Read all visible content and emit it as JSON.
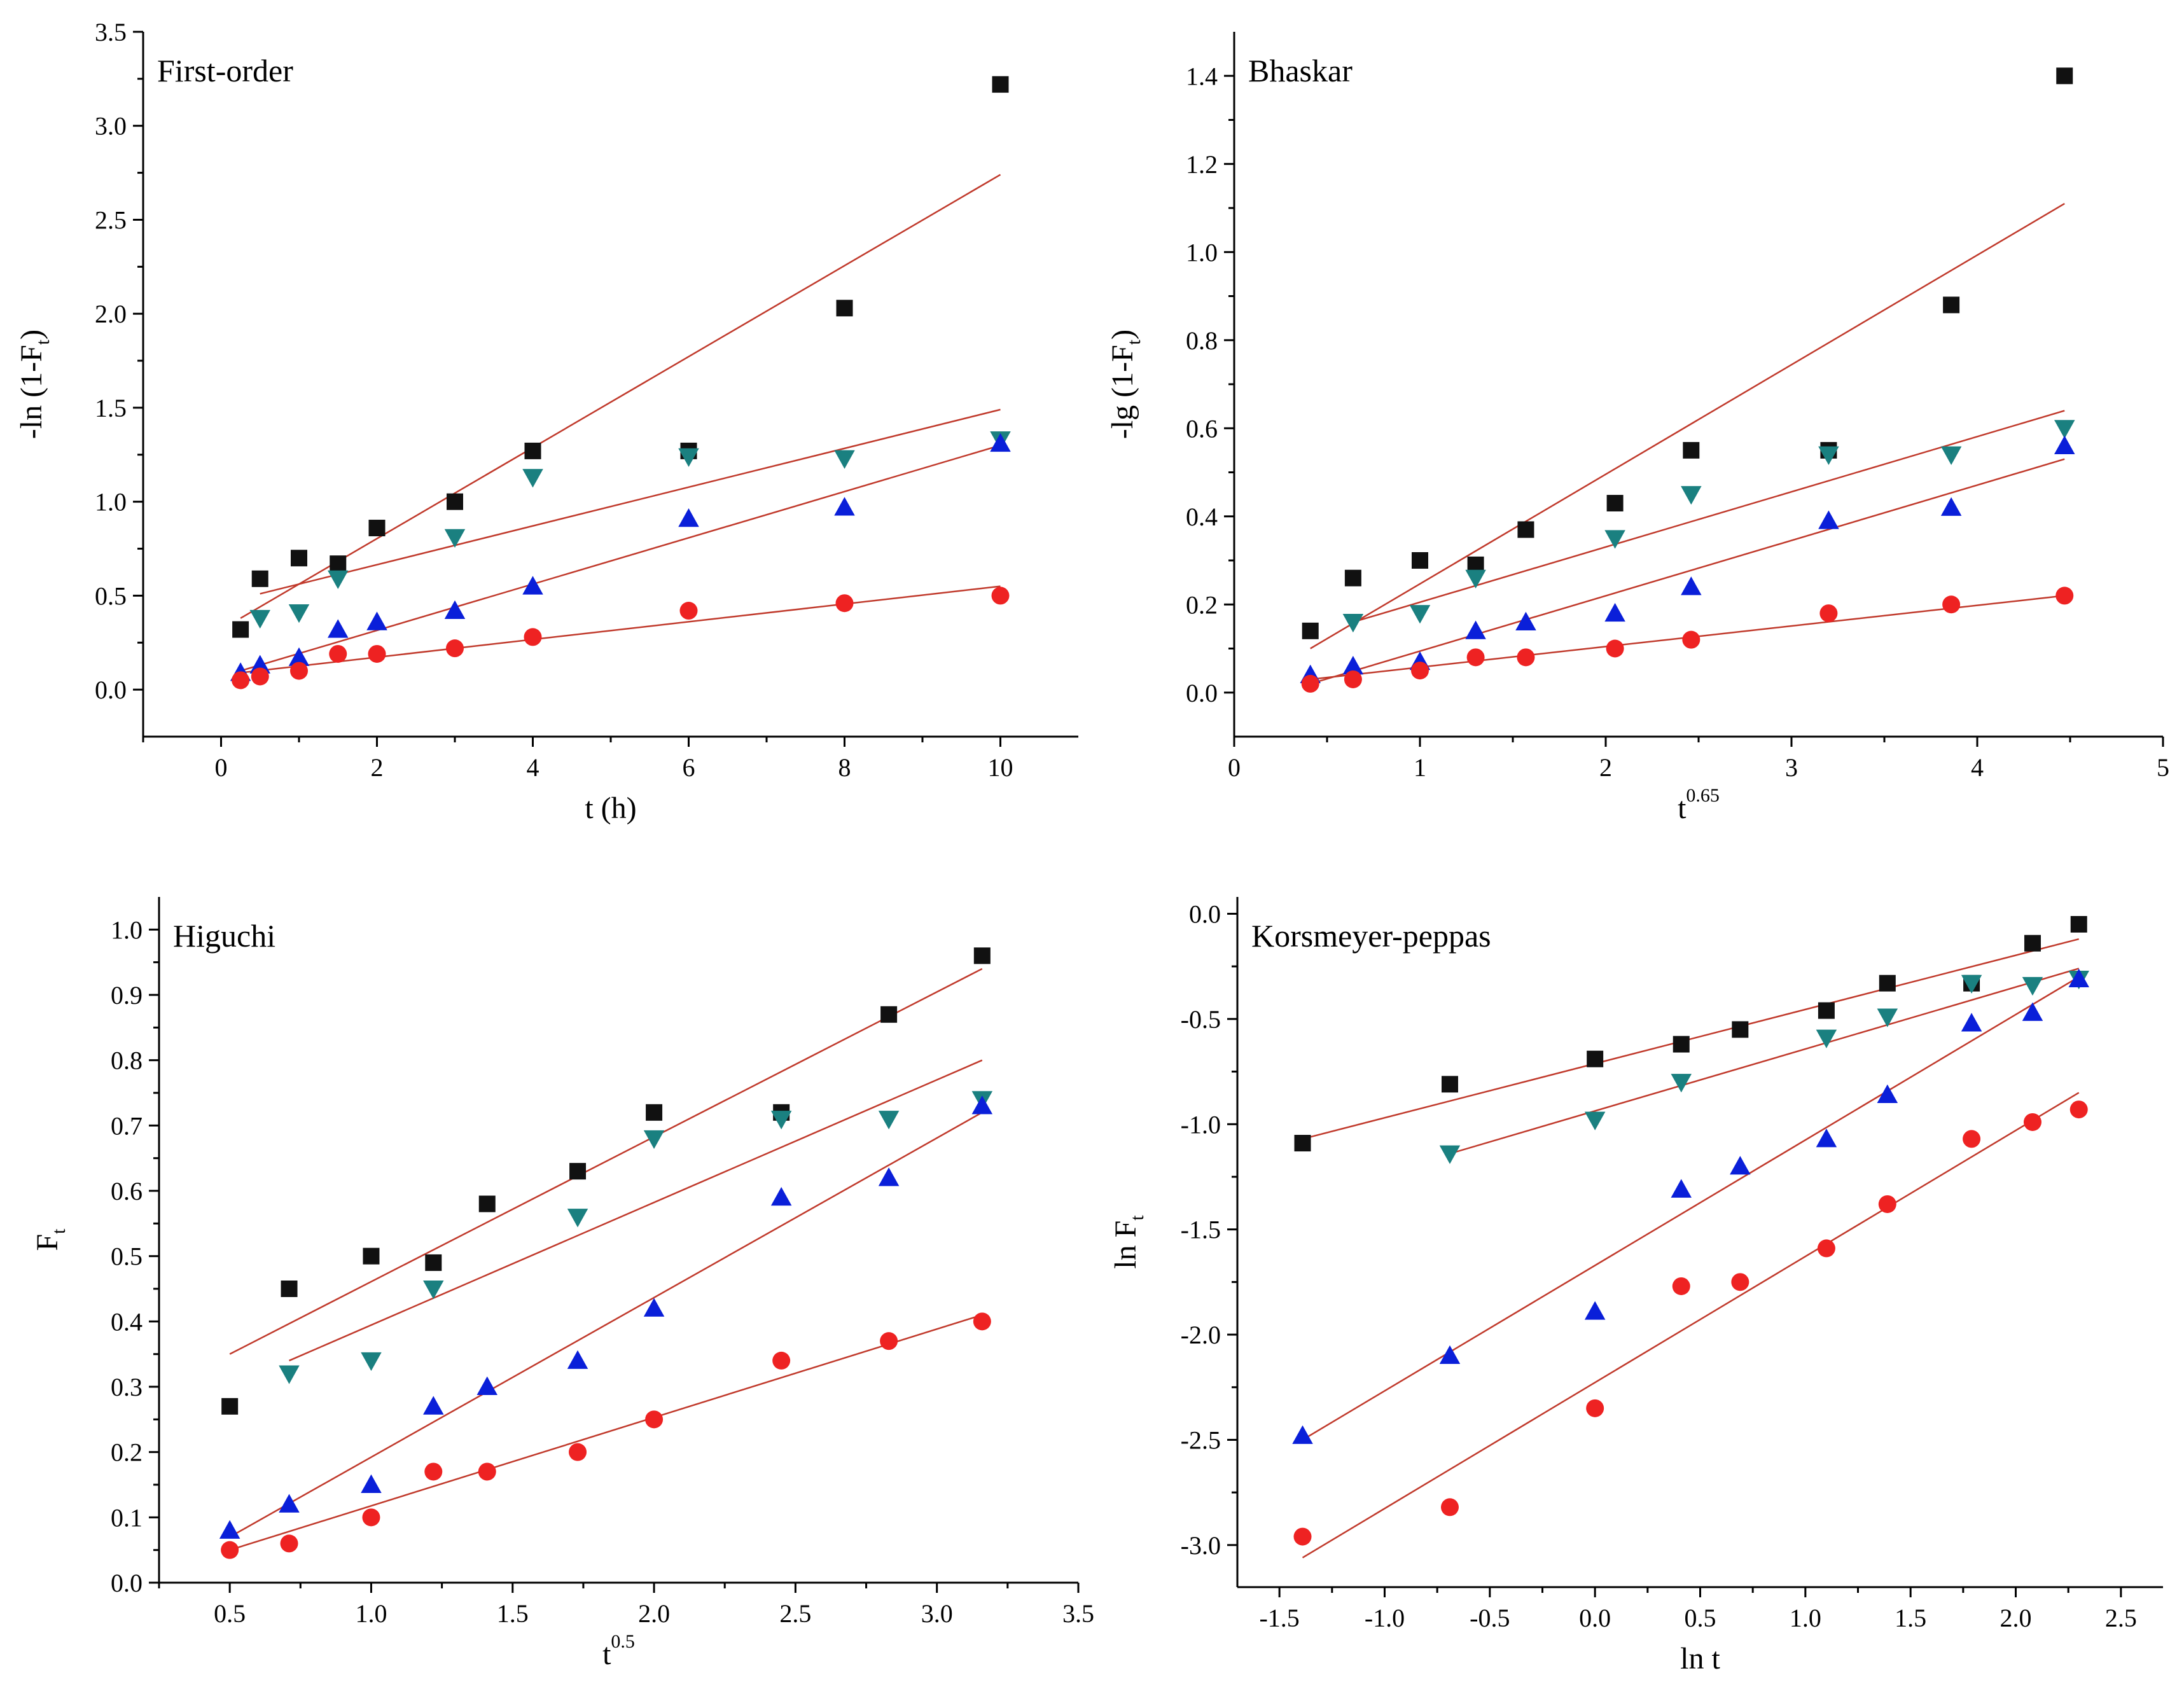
{
  "figure": {
    "colors": {
      "black_square": "#111111",
      "red_circle": "#ee2222",
      "blue_triangle_up": "#0a1fd9",
      "teal_triangle_down": "#1a8080",
      "fit_line": "#c0392b"
    }
  },
  "chart_data": [
    {
      "id": "first-order",
      "type": "scatter",
      "title": "First-order",
      "xlabel": "t (h)",
      "ylabel_main": "-ln (1-F",
      "ylabel_sub": "t",
      "ylabel_end": ")",
      "xlim": [
        -1,
        11
      ],
      "ylim": [
        -0.25,
        3.5
      ],
      "xticks": [
        0,
        2,
        4,
        6,
        8,
        10
      ],
      "yticks": [
        0.0,
        0.5,
        1.0,
        1.5,
        2.0,
        2.5,
        3.0,
        3.5
      ],
      "xtick_labels": [
        "0",
        "2",
        "4",
        "6",
        "8",
        "10"
      ],
      "ytick_labels": [
        "0.0",
        "0.5",
        "1.0",
        "1.5",
        "2.0",
        "2.5",
        "3.0",
        "3.5"
      ],
      "grid": false,
      "series": [
        {
          "marker": "square",
          "color": "#111111",
          "x": [
            0.25,
            0.5,
            1,
            1.5,
            2,
            3,
            4,
            6,
            8,
            10
          ],
          "y": [
            0.32,
            0.59,
            0.7,
            0.67,
            0.86,
            1.0,
            1.27,
            1.27,
            2.03,
            3.22
          ],
          "fit": [
            [
              0.25,
              0.38
            ],
            [
              10,
              2.74
            ]
          ]
        },
        {
          "marker": "triangle-down",
          "color": "#1a8080",
          "x": [
            0.5,
            1,
            1.5,
            3,
            4,
            6,
            8,
            10
          ],
          "y": [
            0.38,
            0.41,
            0.59,
            0.81,
            1.13,
            1.24,
            1.23,
            1.33
          ],
          "fit": [
            [
              0.5,
              0.51
            ],
            [
              10,
              1.49
            ]
          ]
        },
        {
          "marker": "triangle-up",
          "color": "#0a1fd9",
          "x": [
            0.25,
            0.5,
            1,
            1.5,
            2,
            3,
            4,
            6,
            8,
            10
          ],
          "y": [
            0.09,
            0.13,
            0.17,
            0.32,
            0.36,
            0.42,
            0.55,
            0.91,
            0.97,
            1.31
          ],
          "fit": [
            [
              0.25,
              0.1
            ],
            [
              10,
              1.3
            ]
          ]
        },
        {
          "marker": "circle",
          "color": "#ee2222",
          "x": [
            0.25,
            0.5,
            1,
            1.5,
            2,
            3,
            4,
            6,
            8,
            10
          ],
          "y": [
            0.05,
            0.07,
            0.1,
            0.19,
            0.19,
            0.22,
            0.28,
            0.42,
            0.46,
            0.5
          ],
          "fit": [
            [
              0.25,
              0.09
            ],
            [
              10,
              0.55
            ]
          ]
        }
      ]
    },
    {
      "id": "bhaskar",
      "type": "scatter",
      "title": "Bhaskar",
      "xlabel_main": "t",
      "xlabel_sup": "0.65",
      "ylabel_main": "-lg (1-F",
      "ylabel_sub": "t",
      "ylabel_end": ")",
      "xlim": [
        0,
        5
      ],
      "ylim": [
        -0.1,
        1.5
      ],
      "xticks": [
        0,
        1,
        2,
        3,
        4,
        5
      ],
      "yticks": [
        0.0,
        0.2,
        0.4,
        0.6,
        0.8,
        1.0,
        1.2,
        1.4
      ],
      "xtick_labels": [
        "0",
        "1",
        "2",
        "3",
        "4",
        "5"
      ],
      "ytick_labels": [
        "0.0",
        "0.2",
        "0.4",
        "0.6",
        "0.8",
        "1.0",
        "1.2",
        "1.4"
      ],
      "grid": false,
      "series": [
        {
          "marker": "square",
          "color": "#111111",
          "x": [
            0.41,
            0.64,
            1,
            1.3,
            1.57,
            2.05,
            2.46,
            3.2,
            3.86,
            4.47
          ],
          "y": [
            0.14,
            0.26,
            0.3,
            0.29,
            0.37,
            0.43,
            0.55,
            0.55,
            0.88,
            1.4
          ],
          "fit": [
            [
              0.41,
              0.1
            ],
            [
              4.47,
              1.11
            ]
          ]
        },
        {
          "marker": "triangle-down",
          "color": "#1a8080",
          "x": [
            0.64,
            1,
            1.3,
            2.05,
            2.46,
            3.2,
            3.86,
            4.47
          ],
          "y": [
            0.16,
            0.18,
            0.26,
            0.35,
            0.45,
            0.54,
            0.54,
            0.6
          ],
          "fit": [
            [
              0.64,
              0.16
            ],
            [
              4.47,
              0.64
            ]
          ]
        },
        {
          "marker": "triangle-up",
          "color": "#0a1fd9",
          "x": [
            0.41,
            0.64,
            1,
            1.3,
            1.57,
            2.05,
            2.46,
            3.2,
            3.86,
            4.47
          ],
          "y": [
            0.04,
            0.06,
            0.07,
            0.14,
            0.16,
            0.18,
            0.24,
            0.39,
            0.42,
            0.56
          ],
          "fit": [
            [
              0.41,
              0.02
            ],
            [
              4.47,
              0.53
            ]
          ]
        },
        {
          "marker": "circle",
          "color": "#ee2222",
          "x": [
            0.41,
            0.64,
            1,
            1.3,
            1.57,
            2.05,
            2.46,
            3.2,
            3.86,
            4.47
          ],
          "y": [
            0.02,
            0.03,
            0.05,
            0.08,
            0.08,
            0.1,
            0.12,
            0.18,
            0.2,
            0.22
          ],
          "fit": [
            [
              0.41,
              0.03
            ],
            [
              4.47,
              0.22
            ]
          ]
        }
      ]
    },
    {
      "id": "higuchi",
      "type": "scatter",
      "title": "Higuchi",
      "xlabel_main": "t",
      "xlabel_sup": "0.5",
      "ylabel_main": "F",
      "ylabel_sub": "t",
      "ylabel_end": "",
      "xlim": [
        0.25,
        3.5
      ],
      "ylim": [
        0.0,
        1.05
      ],
      "xticks": [
        0.5,
        1.0,
        1.5,
        2.0,
        2.5,
        3.0,
        3.5
      ],
      "yticks": [
        0.0,
        0.1,
        0.2,
        0.3,
        0.4,
        0.5,
        0.6,
        0.7,
        0.8,
        0.9,
        1.0
      ],
      "xtick_labels": [
        "0.5",
        "1.0",
        "1.5",
        "2.0",
        "2.5",
        "3.0",
        "3.5"
      ],
      "ytick_labels": [
        "0.0",
        "0.1",
        "0.2",
        "0.3",
        "0.4",
        "0.5",
        "0.6",
        "0.7",
        "0.8",
        "0.9",
        "1.0"
      ],
      "grid": false,
      "series": [
        {
          "marker": "square",
          "color": "#111111",
          "x": [
            0.5,
            0.71,
            1.0,
            1.22,
            1.41,
            1.73,
            2.0,
            2.45,
            2.83,
            3.16
          ],
          "y": [
            0.27,
            0.45,
            0.5,
            0.49,
            0.58,
            0.63,
            0.72,
            0.72,
            0.87,
            0.96
          ],
          "fit": [
            [
              0.5,
              0.35
            ],
            [
              3.16,
              0.94
            ]
          ]
        },
        {
          "marker": "triangle-down",
          "color": "#1a8080",
          "x": [
            0.71,
            1.0,
            1.22,
            1.73,
            2.0,
            2.45,
            2.83,
            3.16
          ],
          "y": [
            0.32,
            0.34,
            0.45,
            0.56,
            0.68,
            0.71,
            0.71,
            0.74
          ],
          "fit": [
            [
              0.71,
              0.34
            ],
            [
              3.16,
              0.8
            ]
          ]
        },
        {
          "marker": "triangle-up",
          "color": "#0a1fd9",
          "x": [
            0.5,
            0.71,
            1.0,
            1.22,
            1.41,
            1.73,
            2.0,
            2.45,
            2.83,
            3.16
          ],
          "y": [
            0.08,
            0.12,
            0.15,
            0.27,
            0.3,
            0.34,
            0.42,
            0.59,
            0.62,
            0.73
          ],
          "fit": [
            [
              0.5,
              0.07
            ],
            [
              3.16,
              0.72
            ]
          ]
        },
        {
          "marker": "circle",
          "color": "#ee2222",
          "x": [
            0.5,
            0.71,
            1.0,
            1.22,
            1.41,
            1.73,
            2.0,
            2.45,
            2.83,
            3.16
          ],
          "y": [
            0.05,
            0.06,
            0.1,
            0.17,
            0.17,
            0.2,
            0.25,
            0.34,
            0.37,
            0.4
          ],
          "fit": [
            [
              0.5,
              0.05
            ],
            [
              3.16,
              0.41
            ]
          ]
        }
      ]
    },
    {
      "id": "korsmeyer-peppas",
      "type": "scatter",
      "title": "Korsmeyer-peppas",
      "xlabel": "ln t",
      "ylabel_main": "ln F",
      "ylabel_sub": "t",
      "ylabel_end": "",
      "xlim": [
        -1.7,
        2.7
      ],
      "ylim": [
        -3.2,
        0.08
      ],
      "xticks": [
        -1.5,
        -1.0,
        -0.5,
        0.0,
        0.5,
        1.0,
        1.5,
        2.0,
        2.5
      ],
      "yticks": [
        0.0,
        -0.5,
        -1.0,
        -1.5,
        -2.0,
        -2.5,
        -3.0
      ],
      "xtick_labels": [
        "-1.5",
        "-1.0",
        "-0.5",
        "0.0",
        "0.5",
        "1.0",
        "1.5",
        "2.0",
        "2.5"
      ],
      "ytick_labels": [
        "0.0",
        "-0.5",
        "-1.0",
        "-1.5",
        "-2.0",
        "-2.5",
        "-3.0"
      ],
      "grid": false,
      "series": [
        {
          "marker": "square",
          "color": "#111111",
          "x": [
            -1.39,
            -0.69,
            0,
            0.41,
            0.69,
            1.1,
            1.39,
            1.79,
            2.08,
            2.3
          ],
          "y": [
            -1.09,
            -0.81,
            -0.69,
            -0.62,
            -0.55,
            -0.46,
            -0.33,
            -0.33,
            -0.14,
            -0.05
          ],
          "fit": [
            [
              -1.39,
              -1.07
            ],
            [
              2.3,
              -0.12
            ]
          ]
        },
        {
          "marker": "triangle-down",
          "color": "#1a8080",
          "x": [
            -0.69,
            0,
            0.41,
            1.1,
            1.39,
            1.79,
            2.08,
            2.3
          ],
          "y": [
            -1.14,
            -0.98,
            -0.8,
            -0.59,
            -0.49,
            -0.33,
            -0.34,
            -0.31
          ],
          "fit": [
            [
              -0.69,
              -1.14
            ],
            [
              2.3,
              -0.26
            ]
          ]
        },
        {
          "marker": "triangle-up",
          "color": "#0a1fd9",
          "x": [
            -1.39,
            -0.69,
            0,
            0.41,
            0.69,
            1.1,
            1.39,
            1.79,
            2.08,
            2.3
          ],
          "y": [
            -2.48,
            -2.1,
            -1.89,
            -1.31,
            -1.2,
            -1.07,
            -0.86,
            -0.52,
            -0.47,
            -0.31
          ],
          "fit": [
            [
              -1.39,
              -2.5
            ],
            [
              2.3,
              -0.3
            ]
          ]
        },
        {
          "marker": "circle",
          "color": "#ee2222",
          "x": [
            -1.39,
            -0.69,
            0,
            0.41,
            0.69,
            1.1,
            1.39,
            1.79,
            2.08,
            2.3
          ],
          "y": [
            -2.96,
            -2.82,
            -2.35,
            -1.77,
            -1.75,
            -1.59,
            -1.38,
            -1.07,
            -0.99,
            -0.93
          ],
          "fit": [
            [
              -1.39,
              -3.06
            ],
            [
              2.3,
              -0.85
            ]
          ]
        }
      ]
    }
  ]
}
